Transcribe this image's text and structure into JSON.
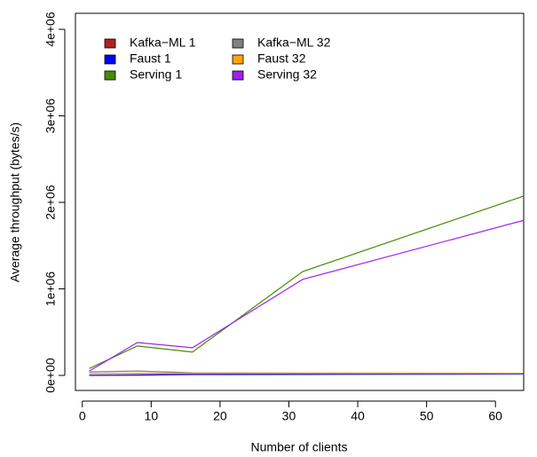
{
  "chart_data": {
    "type": "line",
    "x_label": "Number of clients",
    "y_label": "Average throughput (bytes/s)",
    "x": [
      1,
      8,
      16,
      32,
      64
    ],
    "series": [
      {
        "name": "Kafka−ML 1",
        "color": "#b22222",
        "values": [
          20000,
          20000,
          20000,
          20000,
          20000
        ]
      },
      {
        "name": "Faust 1",
        "color": "#0000ff",
        "values": [
          0,
          3000,
          10000,
          12000,
          15000
        ]
      },
      {
        "name": "Serving 1",
        "color": "#458b00",
        "values": [
          80000,
          340000,
          270000,
          1200000,
          2070000
        ]
      },
      {
        "name": "Kafka−ML 32",
        "color": "#808080",
        "values": [
          40000,
          50000,
          30000,
          28000,
          25000
        ]
      },
      {
        "name": "Faust 32",
        "color": "#ffa500",
        "values": [
          20000,
          25000,
          25000,
          25000,
          25000
        ]
      },
      {
        "name": "Serving 32",
        "color": "#a020f0",
        "values": [
          50000,
          380000,
          320000,
          1110000,
          1790000
        ]
      }
    ],
    "xlim": [
      -1,
      64.1
    ],
    "ylim": [
      -174000,
      4185000
    ],
    "xticks": [
      0,
      10,
      20,
      30,
      40,
      50,
      60
    ],
    "yticks": [
      {
        "value": 0,
        "label": "0e+00"
      },
      {
        "value": 1000000,
        "label": "1e+06"
      },
      {
        "value": 2000000,
        "label": "2e+06"
      },
      {
        "value": 3000000,
        "label": "3e+06"
      },
      {
        "value": 4000000,
        "label": "4e+06"
      }
    ],
    "legend": "top-left"
  }
}
